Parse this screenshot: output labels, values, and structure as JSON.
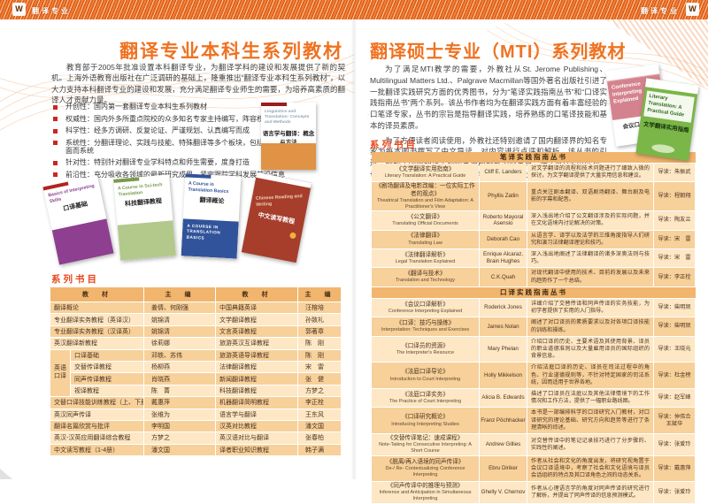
{
  "meta": {
    "logo_text": "W",
    "header_tag": "翻译专业"
  },
  "theme": {
    "accent_orange": "#ef7221",
    "heading_red": "#e8481c",
    "bullet_red": "#c9281d",
    "stripe_orange": "#e2611c",
    "table_header_fill": "#f1b56e",
    "row_light": "#fde7c4",
    "row_dark": "#f7d09a"
  },
  "left_page": {
    "title": "翻译专业本科生系列教材",
    "intro": "教育部于2005年批准设置本科翻译专业，为翻译学科的建设和发展提供了新的契机。上海外语教育出版社在广泛调研的基础上，隆重推出“翻译专业本科生系列教材”，以大力支持本科翻译专业的建设和发展，充分满足翻译专业师生的需要，为培养高素质的翻译人才贡献力量。",
    "features": [
      "开创性：国内第一套翻译专业本科生系列教材",
      "权威性：国内外多所重点院校的众多知名专家主持编写，阵容权威强大",
      "科学性：经多方调研、反复论证、严谨规划、认真编写而成",
      "系统性：分翻译理论、实践与技能、特殊翻译等多个板块，包括近40种教材，全面而系统",
      "针对性：特别针对翻译专业学科特点和师生需要，度身打造",
      "前沿性：充分吸收各领域的最新研究成果，紧密跟踪学科发展前沿信息"
    ],
    "featured_cover": {
      "en": "Linguistics and Translation: Concepts and Methods",
      "cn": "语言学与翻译：概念与方法"
    },
    "covers": [
      {
        "en": "Basics of Interpreting Skills",
        "cn": "口译基础"
      },
      {
        "en": "A Course in Sci-tech Translation",
        "cn": "科技翻译教程"
      },
      {
        "en": "A Course in Translation Basics",
        "cn": "翻译概论",
        "sub": "A COURSE IN TRANSLATION BASICS"
      },
      {
        "en": "Chinese Reading and Writing",
        "cn": "中文读写教程"
      }
    ],
    "list_heading": "系列书目",
    "table": {
      "headers": [
        "教　材",
        "主　编",
        "教　材",
        "主　编"
      ],
      "group_label": "英语口译",
      "rows": [
        {
          "t1": "翻译概论",
          "e1": "姜倩、何刚强",
          "t2": "中国典籍英译",
          "e2": "汪榕培",
          "sub": false
        },
        {
          "t1": "专业翻译实务教程（英译汉）",
          "e1": "姚锦清",
          "t2": "文学翻译教程",
          "e2": "孙致礼",
          "sub": false
        },
        {
          "t1": "专业翻译实务教程（汉译英）",
          "e1": "姚锦清",
          "t2": "文言英译教程",
          "e2": "郭著章",
          "sub": false
        },
        {
          "t1": "英汉翻译新教程",
          "e1": "徐莉娜",
          "t2": "旅游英汉互译教程",
          "e2": "陈　刚",
          "sub": false
        },
        {
          "t1": "口译基础",
          "e1": "邓轶、苏伟",
          "t2": "旅游英语导译教程",
          "e2": "陈　刚",
          "sub": true
        },
        {
          "t1": "交替传译教程",
          "e1": "杨柳燕",
          "t2": "法律翻译教程",
          "e2": "宋　雷",
          "sub": true
        },
        {
          "t1": "同声传译教程",
          "e1": "肖晓燕",
          "t2": "新闻翻译教程",
          "e2": "张　健",
          "sub": true
        },
        {
          "t1": "视译教程",
          "e1": "陈　菁",
          "t2": "科技翻译教程",
          "e2": "方梦之",
          "sub": true
        },
        {
          "t1": "交替口译技能训练教程（上、下册）",
          "e1": "戴惠萍",
          "t2": "机器翻译简明教程",
          "e2": "李正栓",
          "sub": false
        },
        {
          "t1": "英汉同声传译",
          "e1": "张维为",
          "t2": "语言学与翻译",
          "e2": "王东风",
          "sub": false
        },
        {
          "t1": "翻译名篇欣赏与批评",
          "e1": "李明国",
          "t2": "汉英对比教程",
          "e2": "潘文国",
          "sub": false
        },
        {
          "t1": "英汉-汉英应用翻译综合教程",
          "e1": "方梦之",
          "t2": "英汉语对比与翻译",
          "e2": "张春柏",
          "sub": false
        },
        {
          "t1": "中文读写教程（1-4册）",
          "e1": "潘文国",
          "t2": "译者职业知识教程",
          "e2": "韩子满",
          "sub": false
        }
      ]
    }
  },
  "right_page": {
    "title": "翻译硕士专业（MTI）系列教材",
    "paragraphs": [
      "为了满足MTI教学的需要，外教社从St. Jerome Publishing、Multilingual Matters Ltd.、Palgrave Macmillan等国外著名出版社引进了一批翻译实践研究方面的优秀图书，分为“笔译实践指南丛书”和“口译实践指南丛书”两个系列。该丛书作者均为在翻译实践方面有着丰富经验的口笔译专家，丛书的宗旨是指导翻译实践，培养熟练的口笔译技能和基本的译员素质。",
      "为了方便读者阅读使用，外教社还特别邀请了国内翻译界的知名专家为每本图书撰写了中文导读，对内容进行点评和解析。该丛书的引进，弥补了国内翻译实践研究原版参考书的空白。除了MTI学员以外，也适用于各领域的翻译工作者、翻译爱好者以及翻译方向的研究生。"
    ],
    "covers": [
      {
        "en": "Conference Interpreting Explained",
        "cn": "会议口译解析"
      },
      {
        "en": "Literary Translation: A Practical Guide",
        "cn": "文学翻译实用指南"
      }
    ],
    "list_heading": "系列书目",
    "table": {
      "sections": [
        {
          "band": "笔译实践指南丛书",
          "rows": [
            {
              "cn": "《文学翻译实用指南》",
              "en": "Literary Translation: A Practical Guide",
              "author": "Cliff E. Landers",
              "desc": "对文学翻译的流程和技术问题进行了细致入微的探讨，为文学翻译提供了大量实用信息和建议。",
              "daodu": "导读：朱振武"
            },
            {
              "cn": "《剧场翻译及电影改编：一位实际工作者的观点》",
              "en": "Theatrical Translation and Film Adaptation: A Practitioner's View",
              "author": "Phyllis Zatlin",
              "desc": "重点关注剧本翻译、双语剧场翻译、舞台剧及电影的字幕和配音。",
              "daodu": "导读：程朝翔"
            },
            {
              "cn": "《公文翻译》",
              "en": "Translating Official Documents",
              "author": "Roberto Mayoral Asensio",
              "desc": "深入浅出地介绍了公文翻译涉及的实际问题，并在文化语境内讨论解决的对策。",
              "daodu": "导读：陶友兰"
            },
            {
              "cn": "《法律翻译》",
              "en": "Translating Law",
              "author": "Deborah Cao",
              "desc": "从语言学、译学以及法学的三维角度指导人们研究和演习法律翻译理论和技巧。",
              "daodu": "导读：宋　雷"
            },
            {
              "cn": "《法律翻译解析》",
              "en": "Legal Translation Explained",
              "author": "Enrique Alcaraz, Brain Hughes",
              "desc": "深入浅出地阐述了法律翻译的诸多深奥法则与技巧。",
              "daodu": "导读：宋　雷"
            },
            {
              "cn": "《翻译与技术》",
              "en": "Translation and Technology",
              "author": "C.K.Quah",
              "desc": "对现代翻译中使用的技术、目前的发展以及未来的趋势作了一个总结。",
              "daodu": "导读：李正栓"
            }
          ]
        },
        {
          "band": "口译实践指南丛书",
          "rows": [
            {
              "cn": "《会议口译解析》",
              "en": "Conference Interpreting Explained",
              "author": "Roderick Jones",
              "desc": "详细介绍了交替传译和同声传译的实务技能，为初学者提供了实用的入门指导。",
              "daodu": "导读：柴明颎"
            },
            {
              "cn": "《口译：技巧与操练》",
              "en": "Interpretation: Techniques and Exercises",
              "author": "James Nolan",
              "desc": "阐述了对口译员的素质要求以及对各项口译技能的训练和操练。",
              "daodu": "导读：柴明颎"
            },
            {
              "cn": "《口译员的资源》",
              "en": "The Interpreter's Resource",
              "author": "Mary Phelan",
              "desc": "介绍口译的历史、主要术语及其使用背景、译员的职业道德准则以及大量雇用译员的国际组织的背景信息。",
              "daodu": "导读：王晓元"
            },
            {
              "cn": "《法庭口译导论》",
              "en": "Introduction to Court Interpreting",
              "author": "Holly Mikkelson",
              "desc": "介绍法庭口译的历史、译员在司法过程中的角色、行业道德规则等，不针对特定国家的司法系统，因而适用于世界各地。",
              "daodu": "导读：杜金榜"
            },
            {
              "cn": "《法庭口译实务》",
              "en": "The Practice of Court Interpreting",
              "author": "Alicia B. Edwards",
              "desc": "描述了口译员在法庭以及其他法律情境下的工作情况和工作方法，提供了一幅职业路线图。",
              "daodu": "导读：赵军峰"
            },
            {
              "cn": "《口译研究概论》",
              "en": "Introducing Interpreting Studies",
              "author": "Franz Pöchhacker",
              "desc": "本书是一部编排科学的口译研究入门教材，对口译研究的理论基础、研究方向和趋势等进行了条理清晰的综述。",
              "daodu": "导读：仲伟合　王斌华"
            },
            {
              "cn": "《交替传译笔记：速成课程》",
              "en": "Note-Taking for Consecutive Interpreting: A Short Course",
              "author": "Andrew Gillies",
              "desc": "对交替传译中的笔记记录技巧进行了分步骤的、实践性的阐述。",
              "daodu": "导读：张爱玲"
            },
            {
              "cn": "《脱离/再入语境的同声传译》",
              "en": "De-/ Re- Contextualizing Conference Interpreting",
              "author": "Ebru Diriker",
              "desc": "作者从社会和文化的角度出发，将研究视角置于会议口译语境中，考察了社会和文化语境与译员会话组织的特点及其口译角色之间的动态关系。",
              "daodu": "导读：戴惠萍"
            },
            {
              "cn": "《同声传译中的推理与预测》",
              "en": "Inference and Anticipation in Simultaneous Interpreting",
              "author": "Ghelly V. Chernov",
              "desc": "作者从心理语言学的角度对同声传译的研究进行了解析，并提出了同声传译的信息预测模式。",
              "daodu": "导读：张爱玲"
            }
          ]
        }
      ]
    }
  }
}
